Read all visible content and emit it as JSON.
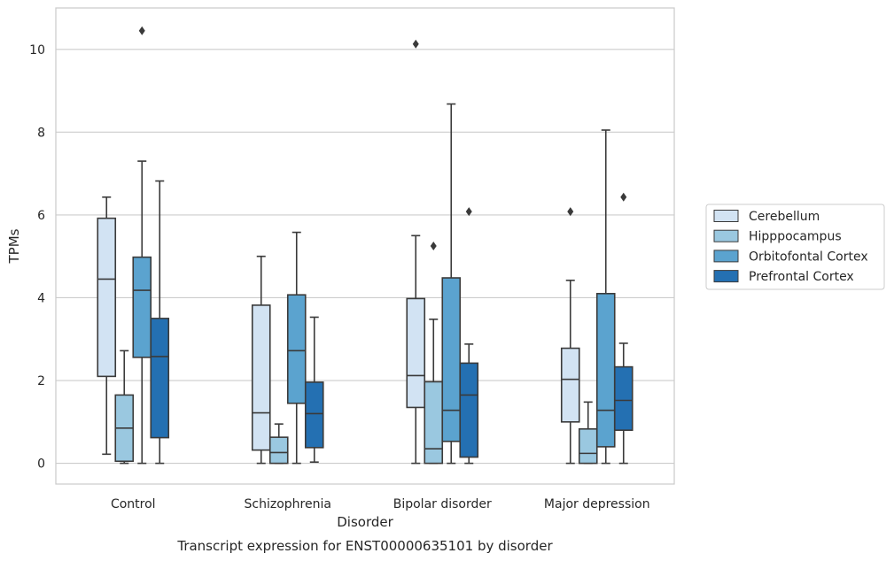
{
  "chart_data": {
    "type": "box",
    "title": "",
    "caption": "Transcript expression for ENST00000635101 by disorder",
    "xlabel": "Disorder",
    "ylabel": "TPMs",
    "ylim": [
      -0.5,
      11.0
    ],
    "yticks": [
      0,
      2,
      4,
      6,
      8,
      10
    ],
    "grid": "horizontal",
    "legend_position": "right",
    "categories": [
      "Control",
      "Schizophrenia",
      "Bipolar disorder",
      "Major depression"
    ],
    "series": [
      {
        "name": "Cerebellum",
        "color": "#d2e3f3",
        "boxes": [
          {
            "whisker_low": 0.22,
            "q1": 2.1,
            "median": 4.45,
            "q3": 5.92,
            "whisker_high": 6.43,
            "outliers": []
          },
          {
            "whisker_low": 0.0,
            "q1": 0.32,
            "median": 1.22,
            "q3": 3.82,
            "whisker_high": 5.0,
            "outliers": []
          },
          {
            "whisker_low": 0.0,
            "q1": 1.35,
            "median": 2.12,
            "q3": 3.98,
            "whisker_high": 5.5,
            "outliers": [
              10.13
            ]
          },
          {
            "whisker_low": 0.0,
            "q1": 1.0,
            "median": 2.03,
            "q3": 2.78,
            "whisker_high": 4.42,
            "outliers": [
              6.08
            ]
          }
        ]
      },
      {
        "name": "Hipppocampus",
        "color": "#9ac8e0",
        "boxes": [
          {
            "whisker_low": 0.0,
            "q1": 0.05,
            "median": 0.85,
            "q3": 1.65,
            "whisker_high": 2.72,
            "outliers": []
          },
          {
            "whisker_low": 0.0,
            "q1": 0.0,
            "median": 0.26,
            "q3": 0.63,
            "whisker_high": 0.95,
            "outliers": []
          },
          {
            "whisker_low": 0.0,
            "q1": 0.0,
            "median": 0.35,
            "q3": 1.97,
            "whisker_high": 3.48,
            "outliers": [
              5.25
            ]
          },
          {
            "whisker_low": 0.0,
            "q1": 0.0,
            "median": 0.24,
            "q3": 0.83,
            "whisker_high": 1.48,
            "outliers": []
          }
        ]
      },
      {
        "name": "Orbitofontal Cortex",
        "color": "#5ba3cf",
        "boxes": [
          {
            "whisker_low": 0.0,
            "q1": 2.56,
            "median": 4.18,
            "q3": 4.98,
            "whisker_high": 7.3,
            "outliers": [
              10.45
            ]
          },
          {
            "whisker_low": 0.0,
            "q1": 1.45,
            "median": 2.72,
            "q3": 4.07,
            "whisker_high": 5.58,
            "outliers": []
          },
          {
            "whisker_low": 0.0,
            "q1": 0.53,
            "median": 1.28,
            "q3": 4.48,
            "whisker_high": 8.68,
            "outliers": []
          },
          {
            "whisker_low": 0.0,
            "q1": 0.4,
            "median": 1.28,
            "q3": 4.1,
            "whisker_high": 8.05,
            "outliers": []
          }
        ]
      },
      {
        "name": "Prefrontal Cortex",
        "color": "#2470b2",
        "boxes": [
          {
            "whisker_low": 0.0,
            "q1": 0.62,
            "median": 2.58,
            "q3": 3.5,
            "whisker_high": 6.82,
            "outliers": []
          },
          {
            "whisker_low": 0.03,
            "q1": 0.38,
            "median": 1.2,
            "q3": 1.96,
            "whisker_high": 3.53,
            "outliers": []
          },
          {
            "whisker_low": 0.0,
            "q1": 0.15,
            "median": 1.65,
            "q3": 2.42,
            "whisker_high": 2.88,
            "outliers": [
              6.08
            ]
          },
          {
            "whisker_low": 0.0,
            "q1": 0.8,
            "median": 1.52,
            "q3": 2.33,
            "whisker_high": 2.9,
            "outliers": [
              6.43
            ]
          }
        ]
      }
    ]
  }
}
